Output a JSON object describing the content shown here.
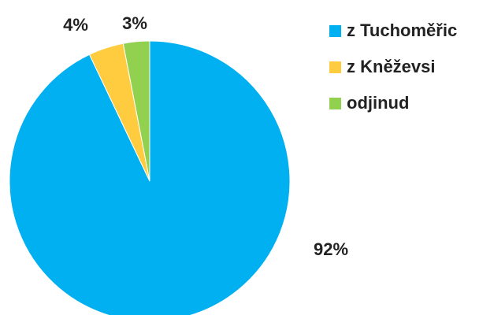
{
  "chart_data": {
    "type": "pie",
    "categories": [
      "z Tuchoměřic",
      "z Kněževsi",
      "odjinud"
    ],
    "values": [
      92,
      4,
      3
    ],
    "value_labels": [
      "92%",
      "4%",
      "3%"
    ],
    "colors": [
      "#00b0f0",
      "#ffcc3f",
      "#92d050"
    ],
    "legend": "right"
  }
}
